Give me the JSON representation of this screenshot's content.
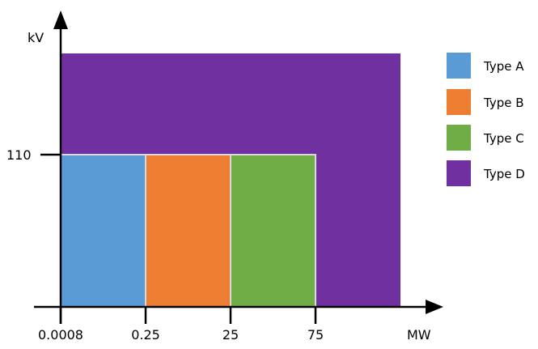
{
  "chart_data": {
    "type": "area",
    "title": "",
    "xlabel": "MW",
    "ylabel": "kV",
    "x_ticks": [
      "0.0008",
      "0.25",
      "25",
      "75"
    ],
    "y_ticks": [
      "110"
    ],
    "regions": [
      {
        "name": "Type A",
        "x_from": "0.0008",
        "x_to": "0.25",
        "y_from": 0,
        "y_to": "110",
        "color": "#5b9bd5"
      },
      {
        "name": "Type B",
        "x_from": "0.25",
        "x_to": "25",
        "y_from": 0,
        "y_to": "110",
        "color": "#ed7d31"
      },
      {
        "name": "Type C",
        "x_from": "25",
        "x_to": "75",
        "y_from": 0,
        "y_to": "110",
        "color": "#70ad47"
      },
      {
        "name": "Type D",
        "x_from": "0.0008",
        "x_to": "above 75",
        "y_from": 0,
        "y_to": "above 110",
        "color": "#7030a0"
      }
    ],
    "legend": {
      "placement": "right",
      "items": [
        {
          "label": "Type A",
          "color": "#5b9bd5"
        },
        {
          "label": "Type B",
          "color": "#ed7d31"
        },
        {
          "label": "Type C",
          "color": "#70ad47"
        },
        {
          "label": "Type D",
          "color": "#7030a0"
        }
      ]
    },
    "grid": false
  }
}
